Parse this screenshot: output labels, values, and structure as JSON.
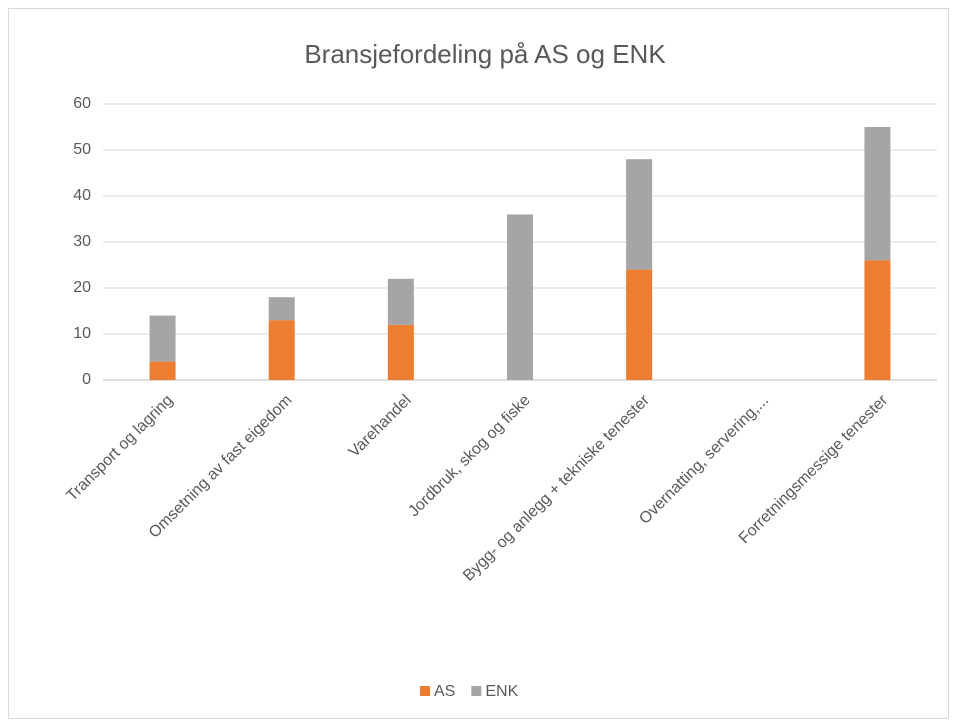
{
  "chart_data": {
    "type": "stacked_bar",
    "title": "Bransjefordeling på AS og ENK",
    "categories": [
      "Transport og  lagring",
      "Omsetning av fast eigedom",
      "Varehandel",
      "Jordbruk, skog og fiske",
      "Bygg- og anlegg + tekniske tenester",
      "Overnatting, servering,...",
      "Forretningsmessige tenester"
    ],
    "series": [
      {
        "name": "AS",
        "color": "#ed7d31",
        "values": [
          4,
          13,
          12,
          0,
          24,
          0,
          26
        ]
      },
      {
        "name": "ENK",
        "color": "#a5a5a5",
        "values": [
          10,
          5,
          10,
          36,
          24,
          0,
          29
        ]
      }
    ],
    "ylim": [
      0,
      60
    ],
    "yticks": [
      0,
      10,
      20,
      30,
      40,
      50,
      60
    ],
    "grid": true,
    "legend": "bottom"
  }
}
